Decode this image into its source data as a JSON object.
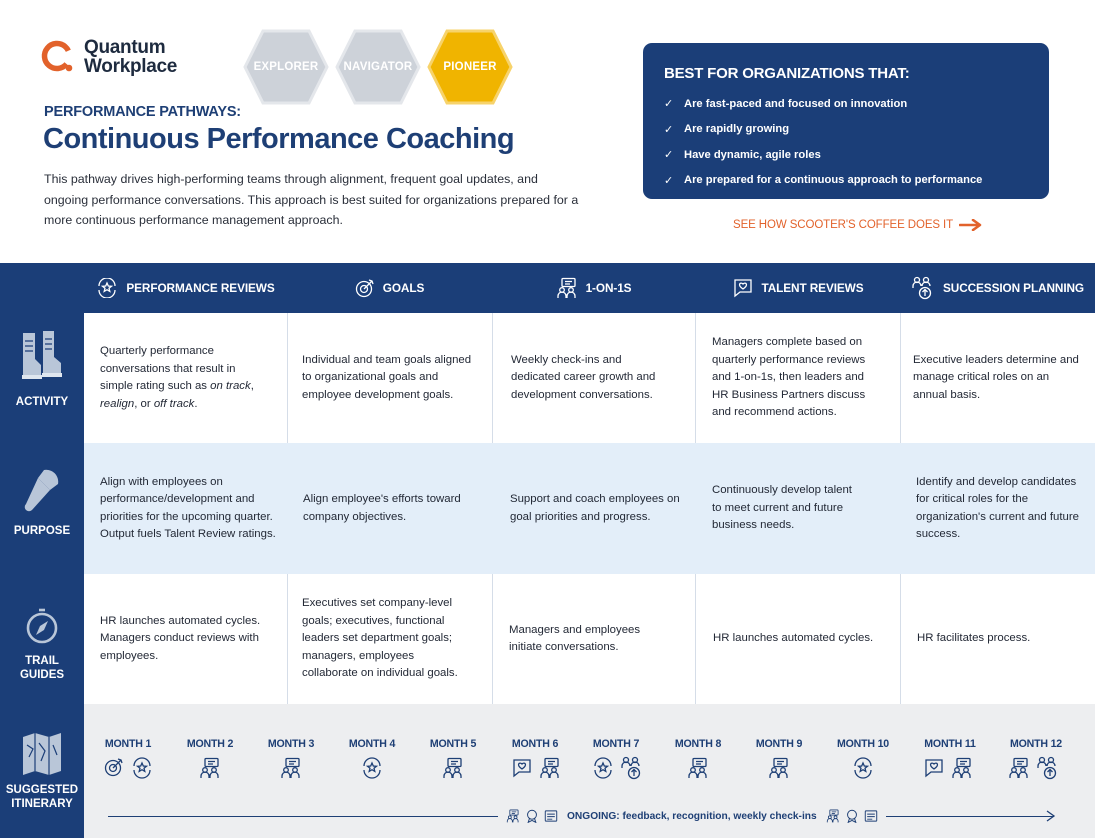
{
  "brand": {
    "line1": "Quantum",
    "line2": "Workplace"
  },
  "badges": [
    {
      "label": "EXPLORER",
      "color": "#cdd2d9"
    },
    {
      "label": "NAVIGATOR",
      "color": "#cdd2d9"
    },
    {
      "label": "PIONEER",
      "color": "#f0b400"
    }
  ],
  "kicker": "PERFORMANCE PATHWAYS:",
  "title": "Continuous Performance Coaching",
  "intro": "This pathway drives high-performing teams through alignment, frequent goal updates, and ongoing performance conversations. This approach is best suited for organizations prepared for a more continuous performance management approach.",
  "best_for": {
    "title": "BEST FOR ORGANIZATIONS THAT:",
    "items": [
      "Are fast-paced and focused on innovation",
      "Are rapidly growing",
      "Have dynamic, agile roles",
      "Are prepared for a continuous approach to performance"
    ]
  },
  "cta": {
    "label": "SEE HOW SCOOTER'S COFFEE DOES IT"
  },
  "columns": [
    {
      "label": "PERFORMANCE REVIEWS",
      "icon": "performance-review-icon"
    },
    {
      "label": "GOALS",
      "icon": "goal-target-icon"
    },
    {
      "label": "1-ON-1S",
      "icon": "one-on-one-icon"
    },
    {
      "label": "TALENT REVIEWS",
      "icon": "talent-review-icon"
    },
    {
      "label": "SUCCESSION PLANNING",
      "icon": "succession-icon"
    }
  ],
  "rows": {
    "activity": {
      "label": "ACTIVITY",
      "cells": [
        "Quarterly performance conversations that result in simple rating such as ",
        "Individual and team goals aligned to organizational goals and employee development goals.",
        "Weekly check-ins and dedicated career growth and development conversations.",
        "Managers complete based on quarterly performance reviews and 1-on-1s, then leaders and HR Business Partners discuss and recommend actions.",
        "Executive leaders determine and manage critical roles on an annual basis."
      ],
      "rating_terms": [
        "on track",
        "realign",
        "off track"
      ],
      "rating_sep1": ",",
      "rating_sep2": ", or",
      "rating_end": "."
    },
    "purpose": {
      "label": "PURPOSE",
      "cells": [
        "Align with employees on performance/development and priorities for the upcoming quarter. Output fuels Talent Review ratings.",
        "Align employee's efforts toward company objectives.",
        "Support and coach employees on goal priorities and progress.",
        "Continuously develop talent to meet current and future business needs.",
        "Identify and develop candidates for critical roles for the organization's current and future success."
      ]
    },
    "trail_guides": {
      "label_line1": "TRAIL",
      "label_line2": "GUIDES",
      "cells": [
        "HR launches automated cycles. Managers conduct reviews with employees.",
        "Executives set company-level goals; executives, functional leaders set department goals; managers, employees collaborate on individual goals.",
        "Managers and employees initiate conversations.",
        "HR launches automated cycles.",
        "HR facilitates process."
      ]
    },
    "itinerary": {
      "label_line1": "SUGGESTED",
      "label_line2": "ITINERARY",
      "months": [
        {
          "label": "MONTH 1",
          "icons": [
            "goal",
            "review"
          ]
        },
        {
          "label": "MONTH 2",
          "icons": [
            "oneonone"
          ]
        },
        {
          "label": "MONTH 3",
          "icons": [
            "oneonone"
          ]
        },
        {
          "label": "MONTH 4",
          "icons": [
            "review"
          ]
        },
        {
          "label": "MONTH 5",
          "icons": [
            "oneonone"
          ]
        },
        {
          "label": "MONTH 6",
          "icons": [
            "talent",
            "oneonone"
          ]
        },
        {
          "label": "MONTH 7",
          "icons": [
            "review",
            "succession"
          ]
        },
        {
          "label": "MONTH 8",
          "icons": [
            "oneonone"
          ]
        },
        {
          "label": "MONTH 9",
          "icons": [
            "oneonone"
          ]
        },
        {
          "label": "MONTH 10",
          "icons": [
            "review"
          ]
        },
        {
          "label": "MONTH 11",
          "icons": [
            "talent",
            "oneonone"
          ]
        },
        {
          "label": "MONTH 12",
          "icons": [
            "oneonone",
            "succession"
          ]
        }
      ],
      "ongoing": "ONGOING: feedback, recognition, weekly check-ins"
    }
  },
  "colors": {
    "navy": "#1b3e78",
    "orange": "#e2622b",
    "gold": "#f0b400",
    "light_blue": "#e3eef9",
    "gray_row": "#edeef0"
  }
}
